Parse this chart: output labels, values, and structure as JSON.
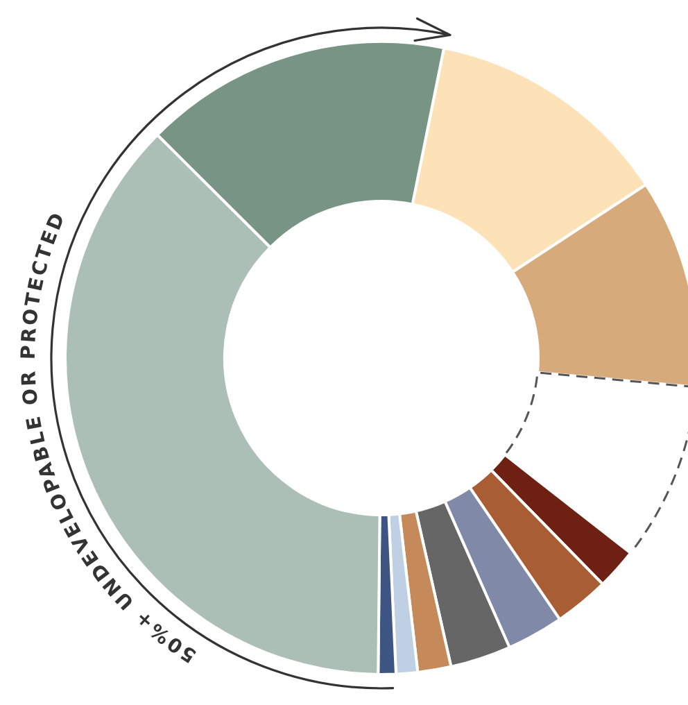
{
  "chart_data": {
    "type": "donut",
    "categories": [
      null,
      null,
      null,
      null,
      null,
      null,
      null,
      null,
      null,
      null,
      null,
      null
    ],
    "values": [
      12.6,
      10.7,
      9.1,
      2.1,
      2.8,
      2.9,
      3.1,
      1.7,
      1.1,
      0.9,
      37.3,
      15.7
    ],
    "colors": [
      "#fde2b8",
      "#d7aa7c",
      "#ffffff",
      "#6e2112",
      "#a85d34",
      "#8089a8",
      "#666666",
      "#c68a5a",
      "#bfd0e4",
      "#3e5583",
      "#abbfb6",
      "#789484"
    ],
    "annotations": [
      "50%+ UNDEVELOPABLE OR PROTECTED"
    ]
  }
}
